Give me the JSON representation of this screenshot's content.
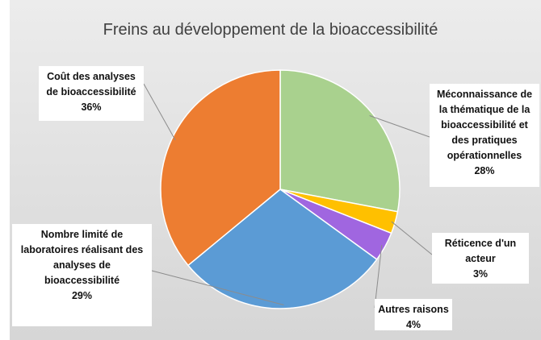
{
  "chart_data": {
    "type": "pie",
    "title": "Freins au développement de la bioaccessibilité",
    "categories": [
      "Méconnaissance de la thématique de la bioaccessibilité et des pratiques opérationnelles",
      "Réticence d'un acteur",
      "Autres raisons",
      "Nombre limité de laboratoires réalisant des analyses de bioaccessibilité",
      "Coût des analyses de bioaccessibilité"
    ],
    "values": [
      28,
      3,
      4,
      29,
      36
    ],
    "value_labels": [
      "28%",
      "3%",
      "4%",
      "29%",
      "36%"
    ],
    "colors": [
      "#a9d18e",
      "#ffc000",
      "#a066e0",
      "#5b9bd5",
      "#ed7d31"
    ]
  }
}
